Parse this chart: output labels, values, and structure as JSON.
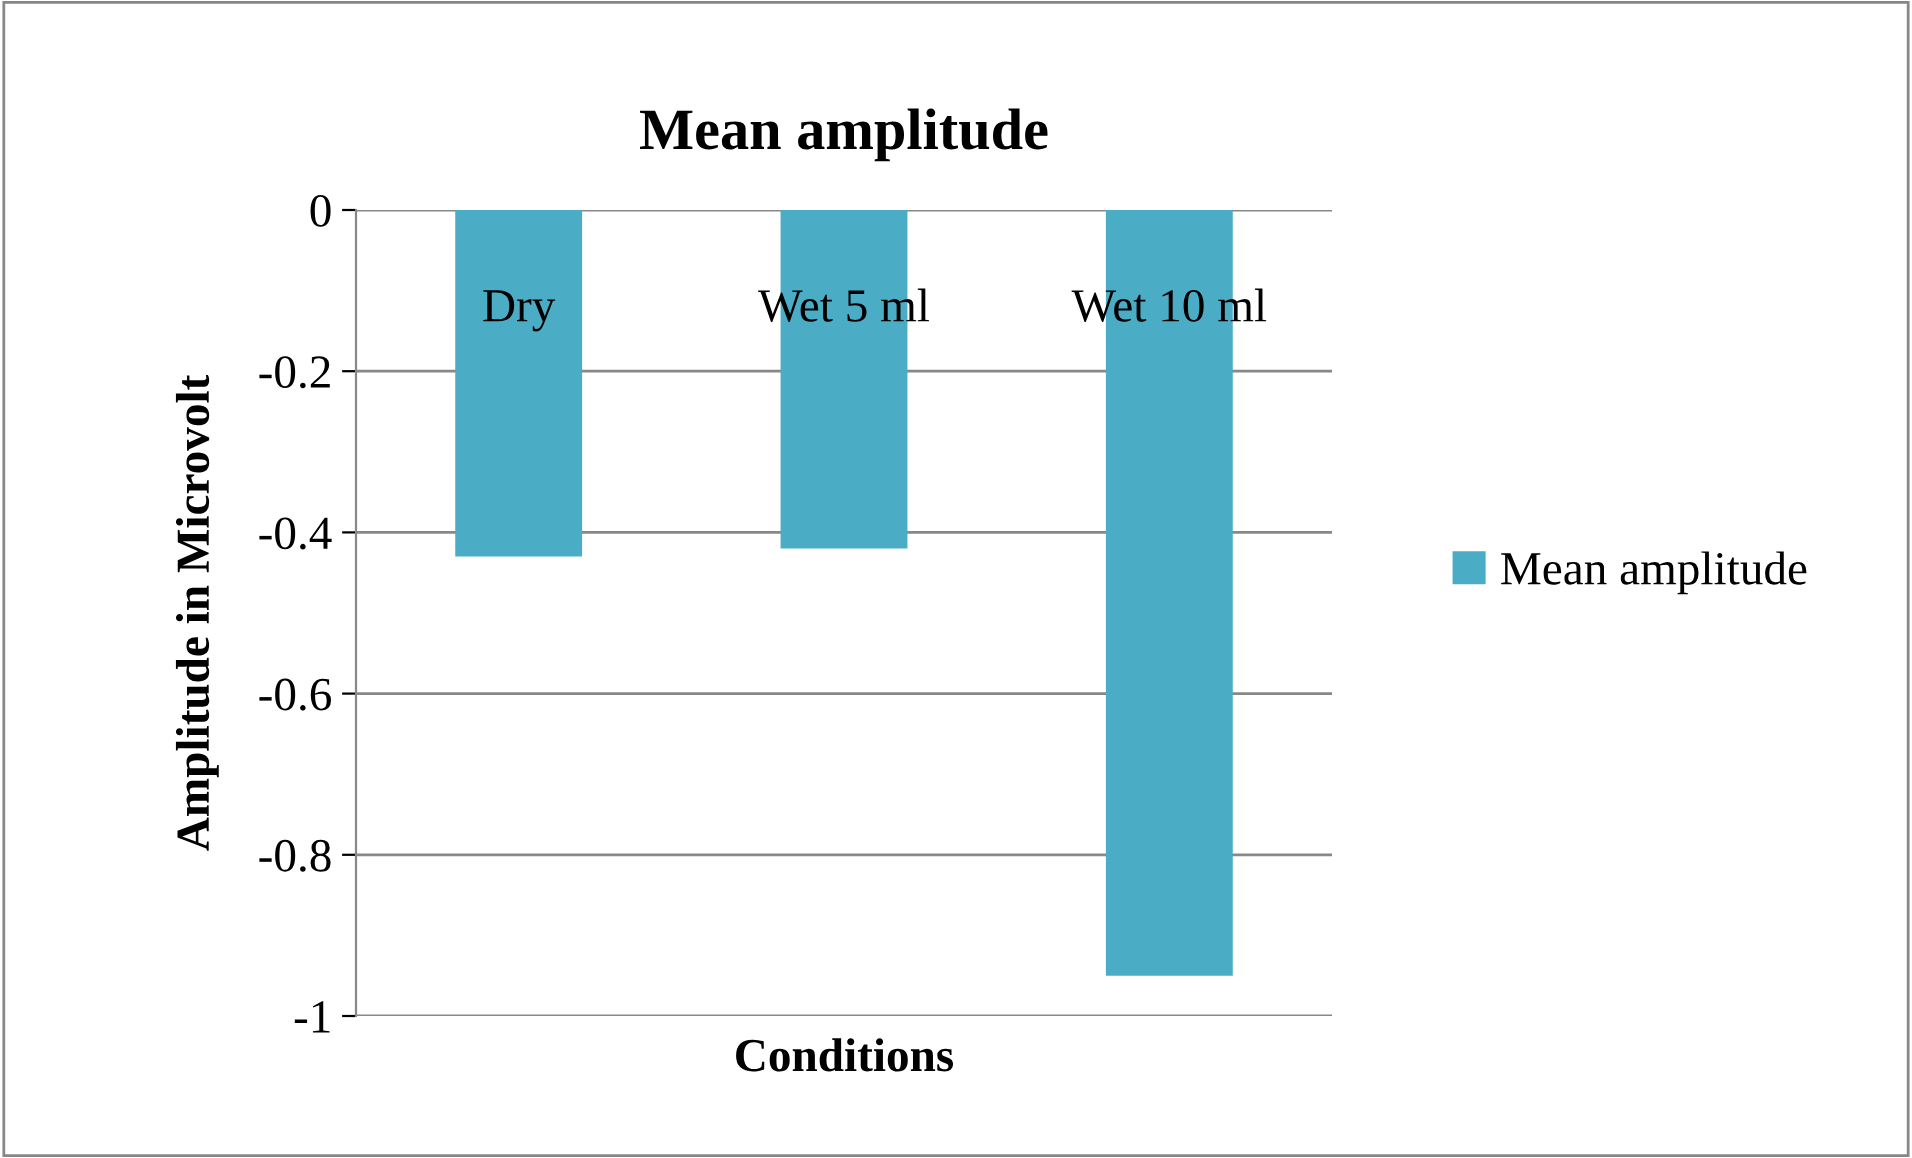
{
  "chart_data": {
    "type": "bar",
    "title": "Mean amplitude",
    "xlabel": "Conditions",
    "ylabel": "Amplitude in Microvolt",
    "categories": [
      "Dry",
      "Wet 5 ml",
      "Wet 10 ml"
    ],
    "series": [
      {
        "name": "Mean amplitude",
        "color": "#4bacc6",
        "values": [
          -0.43,
          -0.42,
          -0.95
        ]
      }
    ],
    "ylim": [
      -1,
      0
    ],
    "yticks": [
      0,
      -0.2,
      -0.4,
      -0.6,
      -0.8,
      -1
    ],
    "grid": "y",
    "legend": "right"
  }
}
